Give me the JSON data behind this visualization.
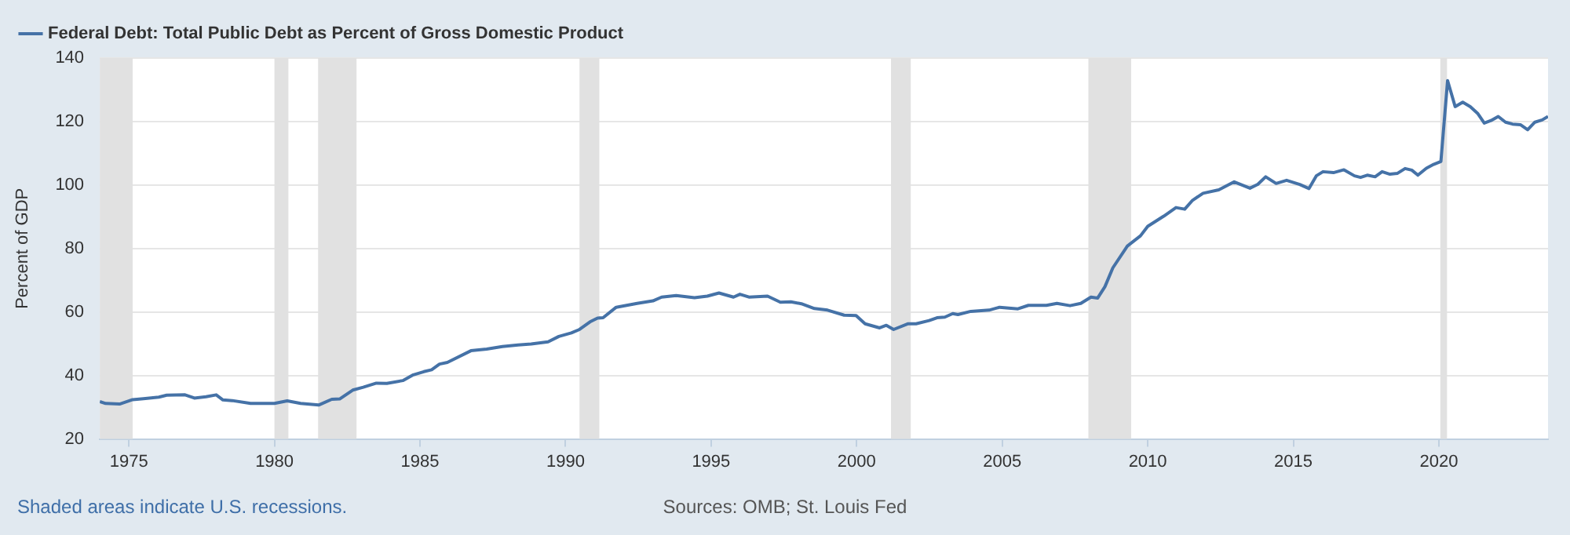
{
  "chart_data": {
    "type": "line",
    "ylabel": "Percent of GDP",
    "legend": "top left",
    "grid": "y",
    "marker": "none",
    "line_style": "solid",
    "annotations": [
      "Shaded areas indicate U.S. recessions.",
      "Sources: OMB; St. Louis Fed"
    ],
    "xlim": [
      1974,
      2023.75
    ],
    "xticks": [
      1975,
      1980,
      1985,
      1990,
      1995,
      2000,
      2005,
      2010,
      2015,
      2020
    ],
    "ylim": [
      20,
      140
    ],
    "yticks": [
      20,
      40,
      60,
      80,
      100,
      120,
      140
    ],
    "bands": [
      {
        "axis": "x",
        "from": 1974,
        "to": 1975.13,
        "color": "#e1e1e1"
      },
      {
        "axis": "x",
        "from": 1980,
        "to": 1980.48,
        "color": "#e1e1e1"
      },
      {
        "axis": "x",
        "from": 1981.5,
        "to": 1982.82,
        "color": "#e1e1e1"
      },
      {
        "axis": "x",
        "from": 1990.48,
        "to": 1991.16,
        "color": "#e1e1e1"
      },
      {
        "axis": "x",
        "from": 2001.18,
        "to": 2001.86,
        "color": "#e1e1e1"
      },
      {
        "axis": "x",
        "from": 2007.96,
        "to": 2009.43,
        "color": "#e1e1e1"
      },
      {
        "axis": "x",
        "from": 2020.05,
        "to": 2020.28,
        "color": "#e1e1e1"
      }
    ],
    "series": [
      {
        "name": "Federal Debt: Total Public Debt as Percent of Gross Domestic Product",
        "color": "#4572a7",
        "x": [
          1974,
          1974.2,
          1974.68,
          1975.13,
          1975.5,
          1976.03,
          1976.3,
          1976.93,
          1977.25,
          1977.65,
          1978,
          1978.23,
          1978.55,
          1979.18,
          1980,
          1980.44,
          1980.9,
          1981.52,
          1981.97,
          1982.24,
          1982.69,
          1983.05,
          1983.5,
          1983.86,
          1984.41,
          1984.77,
          1985.13,
          1985.4,
          1985.67,
          1985.94,
          1986.75,
          1987.29,
          1987.83,
          1988.37,
          1988.82,
          1989.4,
          1989.77,
          1990.2,
          1990.48,
          1990.84,
          1991.1,
          1991.29,
          1991.74,
          1992.46,
          1993,
          1993.3,
          1993.8,
          1994.43,
          1994.87,
          1995.27,
          1995.77,
          1995.99,
          1996.3,
          1996.94,
          1997.38,
          1997.74,
          1998.1,
          1998.55,
          1999,
          1999.57,
          1999.98,
          2000.29,
          2000.79,
          2001.02,
          2001.27,
          2001.77,
          2002.04,
          2002.49,
          2002.76,
          2003.03,
          2003.3,
          2003.48,
          2003.92,
          2004.55,
          2004.91,
          2005.54,
          2005.9,
          2006.52,
          2006.88,
          2007.33,
          2007.7,
          2008.05,
          2008.28,
          2008.53,
          2008.8,
          2009.3,
          2009.75,
          2010,
          2010.55,
          2010.97,
          2011.27,
          2011.54,
          2011.9,
          2012.44,
          2012.97,
          2013.51,
          2013.78,
          2014.05,
          2014.41,
          2014.77,
          2015.22,
          2015.54,
          2015.79,
          2016.02,
          2016.38,
          2016.74,
          2017.1,
          2017.31,
          2017.54,
          2017.81,
          2018.05,
          2018.32,
          2018.58,
          2018.84,
          2019.07,
          2019.28,
          2019.57,
          2019.82,
          2020.07,
          2020.3,
          2020.56,
          2020.82,
          2021.08,
          2021.33,
          2021.56,
          2021.79,
          2022.04,
          2022.29,
          2022.53,
          2022.8,
          2023.05,
          2023.3,
          2023.55,
          2023.75
        ],
        "values": [
          31.8,
          31.2,
          31,
          32.4,
          32.7,
          33.2,
          33.8,
          33.9,
          32.9,
          33.3,
          33.9,
          32.3,
          32.1,
          31.2,
          31.2,
          32,
          31.2,
          30.7,
          32.5,
          32.6,
          35.4,
          36.3,
          37.6,
          37.5,
          38.4,
          40.2,
          41.2,
          41.8,
          43.6,
          44.1,
          47.8,
          48.3,
          49.1,
          49.6,
          49.9,
          50.6,
          52.3,
          53.4,
          54.5,
          56.9,
          58.1,
          58.2,
          61.5,
          62.7,
          63.5,
          64.7,
          65.2,
          64.5,
          65,
          66,
          64.7,
          65.6,
          64.7,
          65,
          63.1,
          63.2,
          62.6,
          61.1,
          60.6,
          59,
          58.9,
          56.3,
          55,
          55.8,
          54.5,
          56.3,
          56.3,
          57.3,
          58.2,
          58.4,
          59.5,
          59.2,
          60.2,
          60.6,
          61.5,
          61,
          62.1,
          62.1,
          62.7,
          62,
          62.7,
          64.7,
          64.4,
          68,
          73.9,
          80.8,
          84,
          87,
          90.2,
          92.9,
          92.4,
          95.2,
          97.4,
          98.5,
          101,
          99,
          100.2,
          102.6,
          100.5,
          101.5,
          100.2,
          98.9,
          102.9,
          104.2,
          103.9,
          104.8,
          102.9,
          102.4,
          103.1,
          102.6,
          104.2,
          103.4,
          103.7,
          105.2,
          104.7,
          103.1,
          105.3,
          106.5,
          107.4,
          132.9,
          124.7,
          126.1,
          124.7,
          122.6,
          119.5,
          120.3,
          121.6,
          119.8,
          119.2,
          119,
          117.4,
          119.8,
          120.5,
          121.6
        ]
      }
    ]
  }
}
